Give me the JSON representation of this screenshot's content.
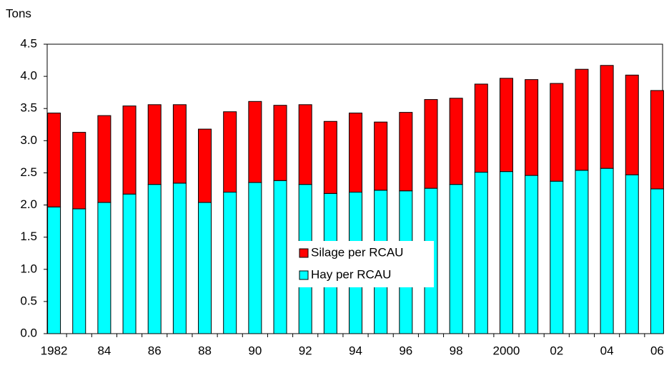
{
  "chart_data": {
    "type": "stacked_bar",
    "y_label": "Tons",
    "categories": [
      "1982",
      null,
      "84",
      null,
      "86",
      null,
      "88",
      null,
      "90",
      null,
      "92",
      null,
      "94",
      null,
      "96",
      null,
      "98",
      null,
      "2000",
      null,
      "02",
      null,
      "04",
      null,
      "06"
    ],
    "series": [
      {
        "name": "Hay per RCAU",
        "color": "#00ffff",
        "values": [
          1.97,
          1.94,
          2.04,
          2.17,
          2.32,
          2.34,
          2.04,
          2.2,
          2.35,
          2.38,
          2.32,
          2.18,
          2.2,
          2.23,
          2.22,
          2.26,
          2.32,
          2.51,
          2.52,
          2.46,
          2.37,
          2.54,
          2.57,
          2.47,
          2.25
        ]
      },
      {
        "name": "Silage per RCAU",
        "color": "#ff0000",
        "values": [
          1.46,
          1.19,
          1.35,
          1.37,
          1.24,
          1.22,
          1.14,
          1.25,
          1.26,
          1.17,
          1.24,
          1.12,
          1.23,
          1.06,
          1.22,
          1.38,
          1.34,
          1.37,
          1.45,
          1.49,
          1.52,
          1.57,
          1.6,
          1.55,
          1.53
        ]
      }
    ],
    "ylim": [
      0,
      4.5
    ],
    "yticks": [
      {
        "value": 0,
        "label": "0.0"
      },
      {
        "value": 0.5,
        "label": "0.5"
      },
      {
        "value": 1,
        "label": "1.0"
      },
      {
        "value": 1.5,
        "label": "1.5"
      },
      {
        "value": 2,
        "label": "2.0"
      },
      {
        "value": 2.5,
        "label": "2.5"
      },
      {
        "value": 3,
        "label": "3.0"
      },
      {
        "value": 3.5,
        "label": "3.5"
      },
      {
        "value": 4,
        "label": "4.0"
      },
      {
        "value": 4.5,
        "label": "4.5"
      }
    ],
    "legend_position": "center"
  }
}
